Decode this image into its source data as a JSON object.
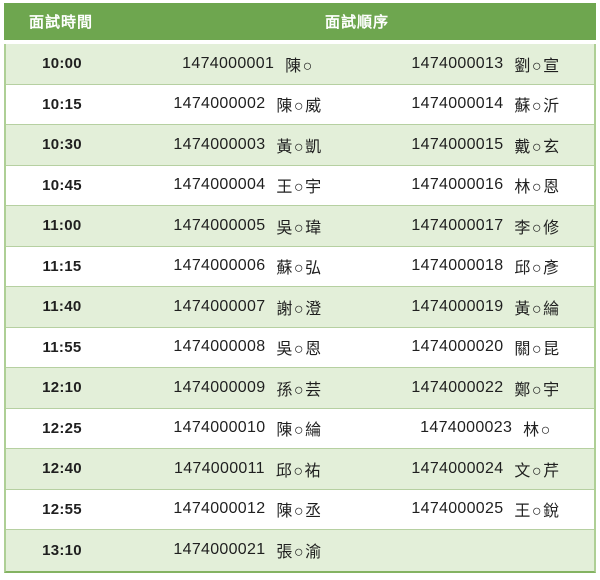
{
  "colors": {
    "header_bg": "#6ea64f",
    "header_text": "#ffffff",
    "row_alt_bg": "#e3efd9",
    "row_bg": "#ffffff",
    "divider": "#b6d0a1",
    "outer_border": "#aecf95",
    "bottom_border": "#84b362",
    "text": "#1f1f1f"
  },
  "table": {
    "headers": {
      "time": "面試時間",
      "order": "面試順序"
    },
    "rows": [
      {
        "time": "10:00",
        "left_id": "1474000001",
        "left_name": "陳○",
        "right_id": "1474000013",
        "right_name": "劉○宣"
      },
      {
        "time": "10:15",
        "left_id": "1474000002",
        "left_name": "陳○威",
        "right_id": "1474000014",
        "right_name": "蘇○沂"
      },
      {
        "time": "10:30",
        "left_id": "1474000003",
        "left_name": "黃○凱",
        "right_id": "1474000015",
        "right_name": "戴○玄"
      },
      {
        "time": "10:45",
        "left_id": "1474000004",
        "left_name": "王○宇",
        "right_id": "1474000016",
        "right_name": "林○恩"
      },
      {
        "time": "11:00",
        "left_id": "1474000005",
        "left_name": "吳○瑋",
        "right_id": "1474000017",
        "right_name": "李○修"
      },
      {
        "time": "11:15",
        "left_id": "1474000006",
        "left_name": "蘇○弘",
        "right_id": "1474000018",
        "right_name": "邱○彥"
      },
      {
        "time": "11:40",
        "left_id": "1474000007",
        "left_name": "謝○澄",
        "right_id": "1474000019",
        "right_name": "黃○綸"
      },
      {
        "time": "11:55",
        "left_id": "1474000008",
        "left_name": "吳○恩",
        "right_id": "1474000020",
        "right_name": "關○昆"
      },
      {
        "time": "12:10",
        "left_id": "1474000009",
        "left_name": "孫○芸",
        "right_id": "1474000022",
        "right_name": "鄭○宇"
      },
      {
        "time": "12:25",
        "left_id": "1474000010",
        "left_name": "陳○綸",
        "right_id": "1474000023",
        "right_name": "林○"
      },
      {
        "time": "12:40",
        "left_id": "1474000011",
        "left_name": "邱○祐",
        "right_id": "1474000024",
        "right_name": "文○芹"
      },
      {
        "time": "12:55",
        "left_id": "1474000012",
        "left_name": "陳○丞",
        "right_id": "1474000025",
        "right_name": "王○銳"
      },
      {
        "time": "13:10",
        "left_id": "1474000021",
        "left_name": "張○渝",
        "right_id": "",
        "right_name": ""
      }
    ]
  }
}
